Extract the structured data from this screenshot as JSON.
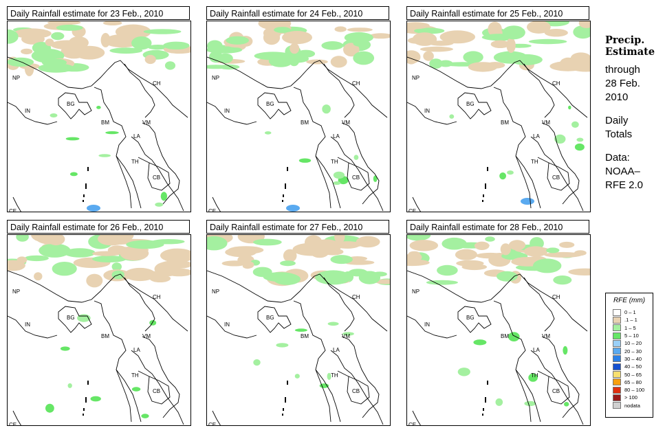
{
  "panels": [
    {
      "title": "Daily Rainfall estimate for  23 Feb., 2010"
    },
    {
      "title": "Daily Rainfall estimate for  24 Feb., 2010"
    },
    {
      "title": "Daily Rainfall estimate for  25 Feb., 2010"
    },
    {
      "title": "Daily Rainfall estimate for  26 Feb., 2010"
    },
    {
      "title": "Daily Rainfall estimate for  27 Feb., 2010"
    },
    {
      "title": "Daily Rainfall estimate for  28 Feb., 2010"
    }
  ],
  "country_labels": [
    "NP",
    "CH",
    "IN",
    "BG",
    "BM",
    "VM",
    "LA",
    "TH",
    "CB",
    "CE"
  ],
  "side": {
    "title_line1": "Precip.",
    "title_line2": "Estimate",
    "through": "through",
    "date_line1": "28 Feb.",
    "date_line2": "2010",
    "daily": "Daily",
    "totals": "Totals",
    "data_line1": "Data:",
    "data_line2": "NOAA–",
    "data_line3": "RFE 2.0"
  },
  "legend": {
    "title": "RFE (mm)",
    "items": [
      {
        "label": "0 – 1",
        "color": "#ffffff"
      },
      {
        "label": ".1 – 1",
        "color": "#e8d2b2"
      },
      {
        "label": "1 – 5",
        "color": "#a4f0a0"
      },
      {
        "label": "5 – 10",
        "color": "#66e666"
      },
      {
        "label": "10 – 20",
        "color": "#9ad0f8"
      },
      {
        "label": "20 – 30",
        "color": "#5aaaf0"
      },
      {
        "label": "30 – 40",
        "color": "#2a80e8"
      },
      {
        "label": "40 – 50",
        "color": "#1450d0"
      },
      {
        "label": "50 – 65",
        "color": "#f8e070"
      },
      {
        "label": "65 – 80",
        "color": "#f8a010"
      },
      {
        "label": "80 – 100",
        "color": "#e03010"
      },
      {
        "label": "> 100",
        "color": "#9a1a1a"
      },
      {
        "label": "nodata",
        "color": "#d0d0d0"
      }
    ]
  }
}
